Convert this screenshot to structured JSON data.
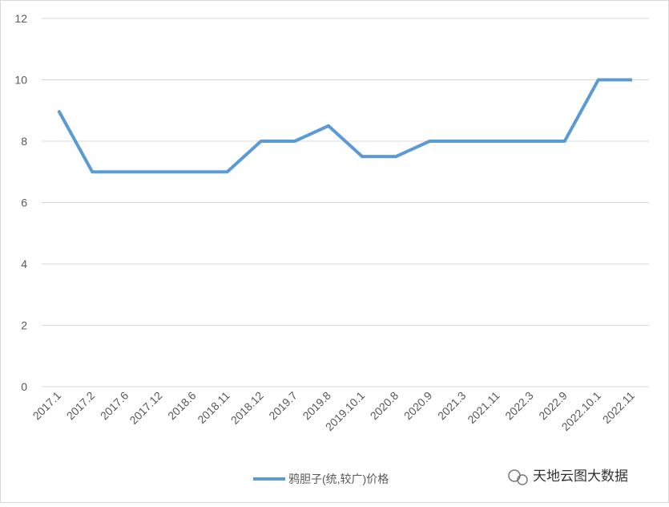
{
  "chart_data": {
    "type": "line",
    "categories": [
      "2017.1",
      "2017.2",
      "2017.6",
      "2017.12",
      "2018.6",
      "2018.11",
      "2018.12",
      "2019.7",
      "2019.8",
      "2019.10.1",
      "2020.8",
      "2020.9",
      "2021.3",
      "2021.11",
      "2022.3",
      "2022.9",
      "2022.10.1",
      "2022.11"
    ],
    "series": [
      {
        "name": "鸦胆子(统,较广)价格",
        "color": "#5b9bd5",
        "values": [
          9,
          7,
          7,
          7,
          7,
          7,
          8,
          8,
          8.5,
          7.5,
          7.5,
          8,
          8,
          8,
          8,
          8,
          10,
          10
        ]
      }
    ],
    "ylim": [
      0,
      12
    ],
    "yticks": [
      0,
      2,
      4,
      6,
      8,
      10,
      12
    ],
    "grid": true,
    "legend": "bottom",
    "watermark": "天地云图大数据"
  }
}
